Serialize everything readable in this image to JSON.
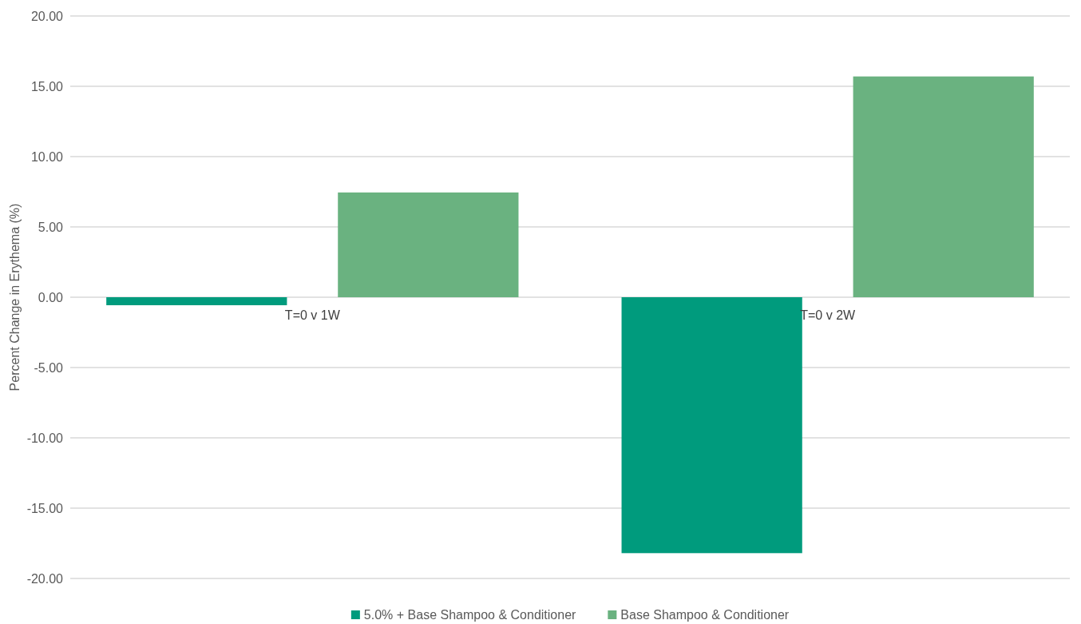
{
  "chart_data": {
    "type": "bar",
    "ylabel": "Percent Change in Erythema (%)",
    "categories": [
      "T=0 v 1W",
      "T=0 v 2W"
    ],
    "series": [
      {
        "name": "5.0% + Base Shampoo & Conditioner",
        "color": "#009b7d",
        "values": [
          -0.57,
          -18.2
        ]
      },
      {
        "name": "Base Shampoo & Conditioner",
        "color": "#6ab280",
        "values": [
          7.45,
          15.7
        ]
      }
    ],
    "ylim": [
      -20,
      20
    ],
    "yticks": [
      {
        "value": -20,
        "label": "-20.00"
      },
      {
        "value": -15,
        "label": "-15.00"
      },
      {
        "value": -10,
        "label": "-10.00"
      },
      {
        "value": -5,
        "label": "-5.00"
      },
      {
        "value": 0,
        "label": "0.00"
      },
      {
        "value": 5,
        "label": "5.00"
      },
      {
        "value": 10,
        "label": "10.00"
      },
      {
        "value": 15,
        "label": "15.00"
      },
      {
        "value": 20,
        "label": "20.00"
      }
    ],
    "grid": "y",
    "legend": "bottom"
  }
}
